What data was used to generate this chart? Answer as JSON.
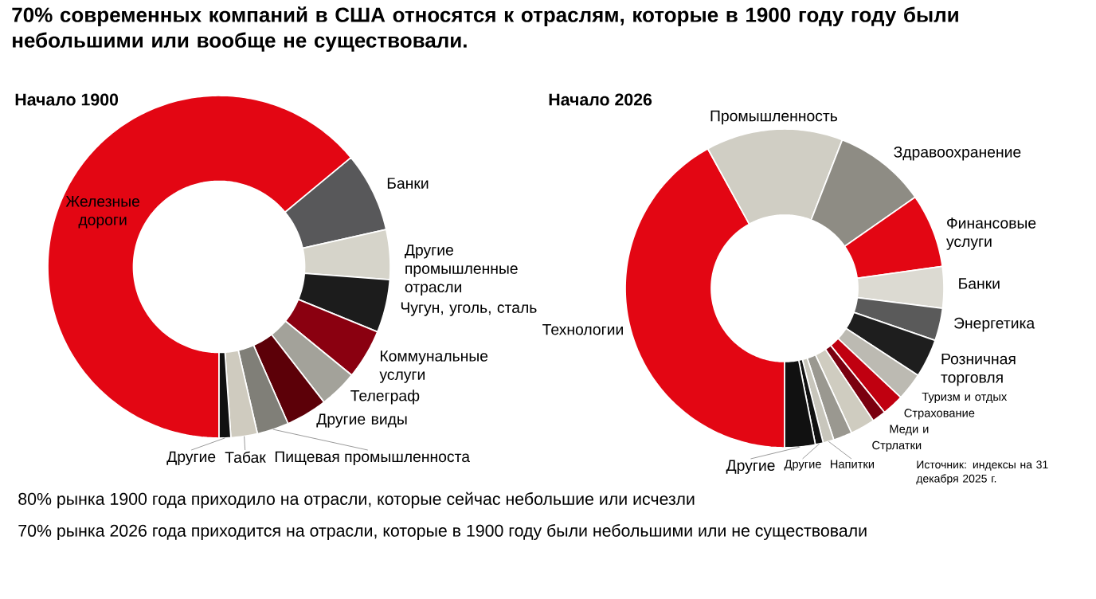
{
  "chart_data": [
    {
      "type": "donut",
      "title": "70% современных компаний в США относятся к отраслям, которые в 1900 году году были небольшими или вообще не существовали.",
      "subtitle": "Начало 1900",
      "categories": [
        "Железные дороги",
        "Банки",
        "Другие промышленные отрасли",
        "Чугун, уголь, сталь",
        "Коммунальные услуги",
        "Телеграф",
        "Другие виды",
        "Пищевая промышленноста",
        "Табак",
        "Другие"
      ],
      "values": [
        64.0,
        7.5,
        4.7,
        5.0,
        4.7,
        3.6,
        3.9,
        3.0,
        2.5,
        1.1
      ],
      "colors": [
        "#e30613",
        "#58585a",
        "#d6d4ca",
        "#1c1c1c",
        "#8a0010",
        "#a3a29a",
        "#5c0008",
        "#807f78",
        "#cfcbbf",
        "#111111"
      ],
      "annotations": [
        "80% рынка 1900 года приходило на отрасли, которые сейчас небольшие или исчезли",
        "70% рынка 2026 года приходится на отрасли, которые в 1900 году были небольшими или не существовали"
      ]
    },
    {
      "type": "donut",
      "subtitle": "Начало 2026",
      "categories": [
        "Технологии",
        "Промышленность",
        "Здравоохранение",
        "Финансовые услуги",
        "Банки",
        "Энергетика",
        "Розничная торговля",
        "Туризм и отдых",
        "Страхование",
        "Меди и",
        "Стрлатки",
        null,
        "Напитки",
        "Другие",
        "Другие"
      ],
      "values": [
        42.0,
        13.9,
        9.4,
        7.5,
        4.2,
        3.3,
        3.9,
        2.8,
        2.2,
        1.4,
        2.5,
        1.9,
        1.1,
        0.8,
        3.1
      ],
      "colors": [
        "#e30613",
        "#d0cec4",
        "#8e8c84",
        "#e30613",
        "#dcdad2",
        "#5a5a5a",
        "#1e1e1e",
        "#bcbab2",
        "#c00010",
        "#7a0010",
        "#cfccc0",
        "#9a9890",
        "#c8c6bc",
        "#111111",
        "#111111"
      ],
      "annotations": [
        "Источник: индексы на 31 декабря 2025 г."
      ]
    }
  ]
}
